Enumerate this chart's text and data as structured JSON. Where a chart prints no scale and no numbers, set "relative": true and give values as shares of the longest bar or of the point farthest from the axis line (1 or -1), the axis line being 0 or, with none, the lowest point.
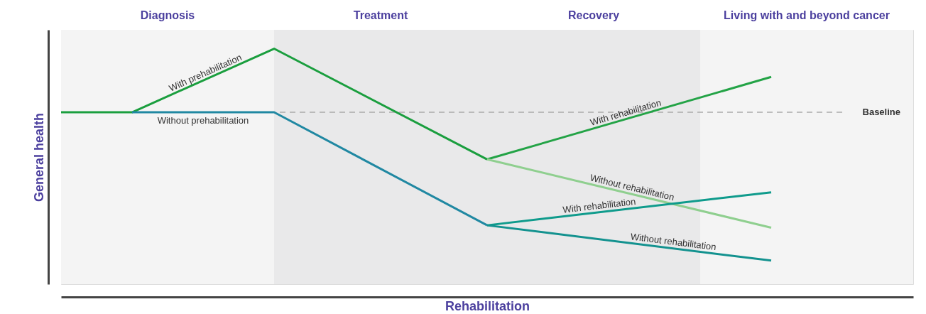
{
  "chart_data": {
    "type": "line",
    "relative": true,
    "xlabel": "Rehabilitation",
    "ylabel": "General health",
    "marker": "none",
    "line_style": "solid",
    "categories": [
      null,
      null,
      null,
      null,
      null,
      null,
      null,
      null,
      null,
      null,
      null,
      null,
      null
    ],
    "series": [
      {
        "name": "With prehabilitation",
        "color": "#1a9e3e",
        "values": [
          0.73,
          0.73,
          null,
          1.0,
          null,
          null,
          0.53,
          null,
          null,
          null,
          null,
          null,
          null
        ]
      },
      {
        "name": "Without prehabilitation",
        "color": "#2088a2",
        "values": [
          null,
          0.73,
          null,
          0.73,
          null,
          null,
          0.25,
          null,
          null,
          null,
          null,
          null,
          null
        ]
      },
      {
        "name": "With rehabilitation",
        "color": "#23a346",
        "values": [
          null,
          null,
          null,
          null,
          null,
          null,
          0.53,
          null,
          null,
          null,
          0.88,
          null,
          null
        ]
      },
      {
        "name": "Without rehabilitation",
        "color": "#8fcf8f",
        "values": [
          null,
          null,
          null,
          null,
          null,
          null,
          0.53,
          null,
          null,
          null,
          0.24,
          null,
          null
        ]
      },
      {
        "name": "With rehabilitation",
        "color": "#0f9b8c",
        "values": [
          null,
          null,
          null,
          null,
          null,
          null,
          0.25,
          null,
          null,
          null,
          0.39,
          null,
          null
        ]
      },
      {
        "name": "Without rehabilitation",
        "color": "#13928f",
        "values": [
          null,
          null,
          null,
          null,
          null,
          null,
          0.25,
          null,
          null,
          null,
          0.1,
          null,
          null
        ]
      }
    ],
    "annotations": [
      "Diagnosis",
      "Treatment",
      "Recovery",
      "Living with and beyond cancer"
    ],
    "ref_lines": [
      {
        "axis": "y",
        "value": 0.73,
        "label": "Baseline",
        "color": "#aaaaaa",
        "line_style": "dashed"
      }
    ]
  }
}
